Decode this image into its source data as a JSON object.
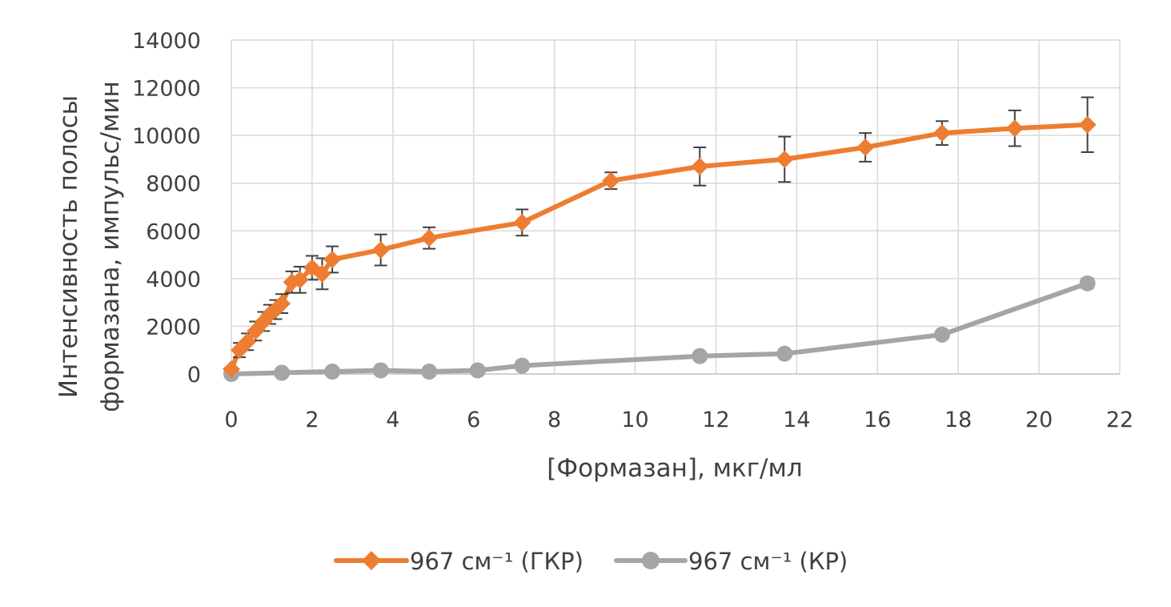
{
  "chart_data": {
    "type": "line",
    "title": "",
    "xlabel": "[Формазан], мкг/мл",
    "ylabel_line1": "Интенсивность полосы",
    "ylabel_line2": "формазана, импульс/мин",
    "xlim": [
      0,
      22
    ],
    "ylim": [
      0,
      14000
    ],
    "x_ticks": [
      "0",
      "2",
      "4",
      "6",
      "8",
      "10",
      "12",
      "14",
      "16",
      "18",
      "20",
      "22"
    ],
    "y_ticks": [
      "0",
      "2000",
      "4000",
      "6000",
      "8000",
      "10000",
      "12000",
      "14000"
    ],
    "grid": true,
    "legend_position": "bottom",
    "series": [
      {
        "name": "967 см⁻¹ (ГКР)",
        "color": "#ED7D31",
        "marker": "diamond",
        "points": [
          {
            "x": 0.0,
            "y": 200,
            "err": 0
          },
          {
            "x": 0.2,
            "y": 1000,
            "err": 300
          },
          {
            "x": 0.4,
            "y": 1350,
            "err": 350
          },
          {
            "x": 0.6,
            "y": 1800,
            "err": 400
          },
          {
            "x": 0.8,
            "y": 2200,
            "err": 400
          },
          {
            "x": 0.95,
            "y": 2500,
            "err": 400
          },
          {
            "x": 1.1,
            "y": 2700,
            "err": 400
          },
          {
            "x": 1.25,
            "y": 2950,
            "err": 400
          },
          {
            "x": 1.5,
            "y": 3850,
            "err": 450
          },
          {
            "x": 1.7,
            "y": 3950,
            "err": 550
          },
          {
            "x": 2.0,
            "y": 4450,
            "err": 500
          },
          {
            "x": 2.25,
            "y": 4200,
            "err": 650
          },
          {
            "x": 2.5,
            "y": 4800,
            "err": 550
          },
          {
            "x": 3.7,
            "y": 5200,
            "err": 650
          },
          {
            "x": 4.9,
            "y": 5700,
            "err": 450
          },
          {
            "x": 7.2,
            "y": 6350,
            "err": 550
          },
          {
            "x": 9.4,
            "y": 8100,
            "err": 350
          },
          {
            "x": 11.6,
            "y": 8700,
            "err": 800
          },
          {
            "x": 13.7,
            "y": 9000,
            "err": 950
          },
          {
            "x": 15.7,
            "y": 9500,
            "err": 600
          },
          {
            "x": 17.6,
            "y": 10100,
            "err": 500
          },
          {
            "x": 19.4,
            "y": 10300,
            "err": 750
          },
          {
            "x": 21.2,
            "y": 10450,
            "err": 1150
          }
        ]
      },
      {
        "name": "967 см⁻¹ (КР)",
        "color": "#A5A5A5",
        "marker": "circle",
        "points": [
          {
            "x": 0.0,
            "y": 0,
            "err": 0
          },
          {
            "x": 1.25,
            "y": 50,
            "err": 80
          },
          {
            "x": 2.5,
            "y": 100,
            "err": 100
          },
          {
            "x": 3.7,
            "y": 150,
            "err": 100
          },
          {
            "x": 4.9,
            "y": 100,
            "err": 100
          },
          {
            "x": 6.1,
            "y": 150,
            "err": 100
          },
          {
            "x": 7.2,
            "y": 350,
            "err": 100
          },
          {
            "x": 11.6,
            "y": 750,
            "err": 100
          },
          {
            "x": 13.7,
            "y": 850,
            "err": 80
          },
          {
            "x": 17.6,
            "y": 1650,
            "err": 120
          },
          {
            "x": 21.2,
            "y": 3800,
            "err": 200
          }
        ]
      }
    ]
  }
}
